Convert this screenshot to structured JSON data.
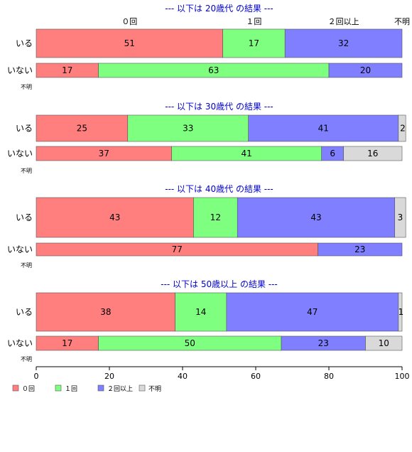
{
  "chart_data": {
    "type": "bar",
    "orientation": "horizontal",
    "stacked": "percent",
    "xlim": [
      0,
      100
    ],
    "xticks": [
      "0",
      "20",
      "40",
      "60",
      "80",
      "100"
    ],
    "colors": {
      "0回": "#ff7f7f",
      "1回": "#7fff7f",
      "2回以上": "#7f7fff",
      "不明": "#d9d9d9"
    },
    "header_labels": [
      "０回",
      "１回",
      "２回以上",
      "不明"
    ],
    "legend": {
      "position": "bottom-left",
      "items": [
        {
          "label": "０回",
          "color": "#ff7f7f"
        },
        {
          "label": "１回",
          "color": "#7fff7f"
        },
        {
          "label": "２回以上",
          "color": "#7f7fff"
        },
        {
          "label": "不明",
          "color": "#d9d9d9"
        }
      ]
    },
    "panels": [
      {
        "title": "--- 以下は 20歳代 の結果 ---",
        "categories": [
          "いる",
          "いない",
          "不明"
        ],
        "series": [
          {
            "name": "０回",
            "values": [
              51,
              17,
              null
            ]
          },
          {
            "name": "１回",
            "values": [
              17,
              63,
              null
            ]
          },
          {
            "name": "２回以上",
            "values": [
              32,
              20,
              null
            ]
          },
          {
            "name": "不明",
            "values": [
              0,
              0,
              null
            ]
          }
        ]
      },
      {
        "title": "--- 以下は 30歳代 の結果 ---",
        "categories": [
          "いる",
          "いない",
          "不明"
        ],
        "series": [
          {
            "name": "０回",
            "values": [
              25,
              37,
              null
            ]
          },
          {
            "name": "１回",
            "values": [
              33,
              41,
              null
            ]
          },
          {
            "name": "２回以上",
            "values": [
              41,
              6,
              null
            ]
          },
          {
            "name": "不明",
            "values": [
              2,
              16,
              null
            ]
          }
        ]
      },
      {
        "title": "--- 以下は 40歳代 の結果 ---",
        "categories": [
          "いる",
          "いない",
          "不明"
        ],
        "series": [
          {
            "name": "０回",
            "values": [
              43,
              77,
              null
            ]
          },
          {
            "name": "１回",
            "values": [
              12,
              0,
              null
            ]
          },
          {
            "name": "２回以上",
            "values": [
              43,
              23,
              null
            ]
          },
          {
            "name": "不明",
            "values": [
              3,
              0,
              null
            ]
          }
        ]
      },
      {
        "title": "--- 以下は 50歳以上 の結果 ---",
        "categories": [
          "いる",
          "いない",
          "不明"
        ],
        "series": [
          {
            "name": "０回",
            "values": [
              38,
              17,
              null
            ]
          },
          {
            "name": "１回",
            "values": [
              14,
              50,
              null
            ]
          },
          {
            "name": "２回以上",
            "values": [
              47,
              23,
              null
            ]
          },
          {
            "name": "不明",
            "values": [
              1,
              10,
              null
            ]
          }
        ]
      }
    ]
  }
}
